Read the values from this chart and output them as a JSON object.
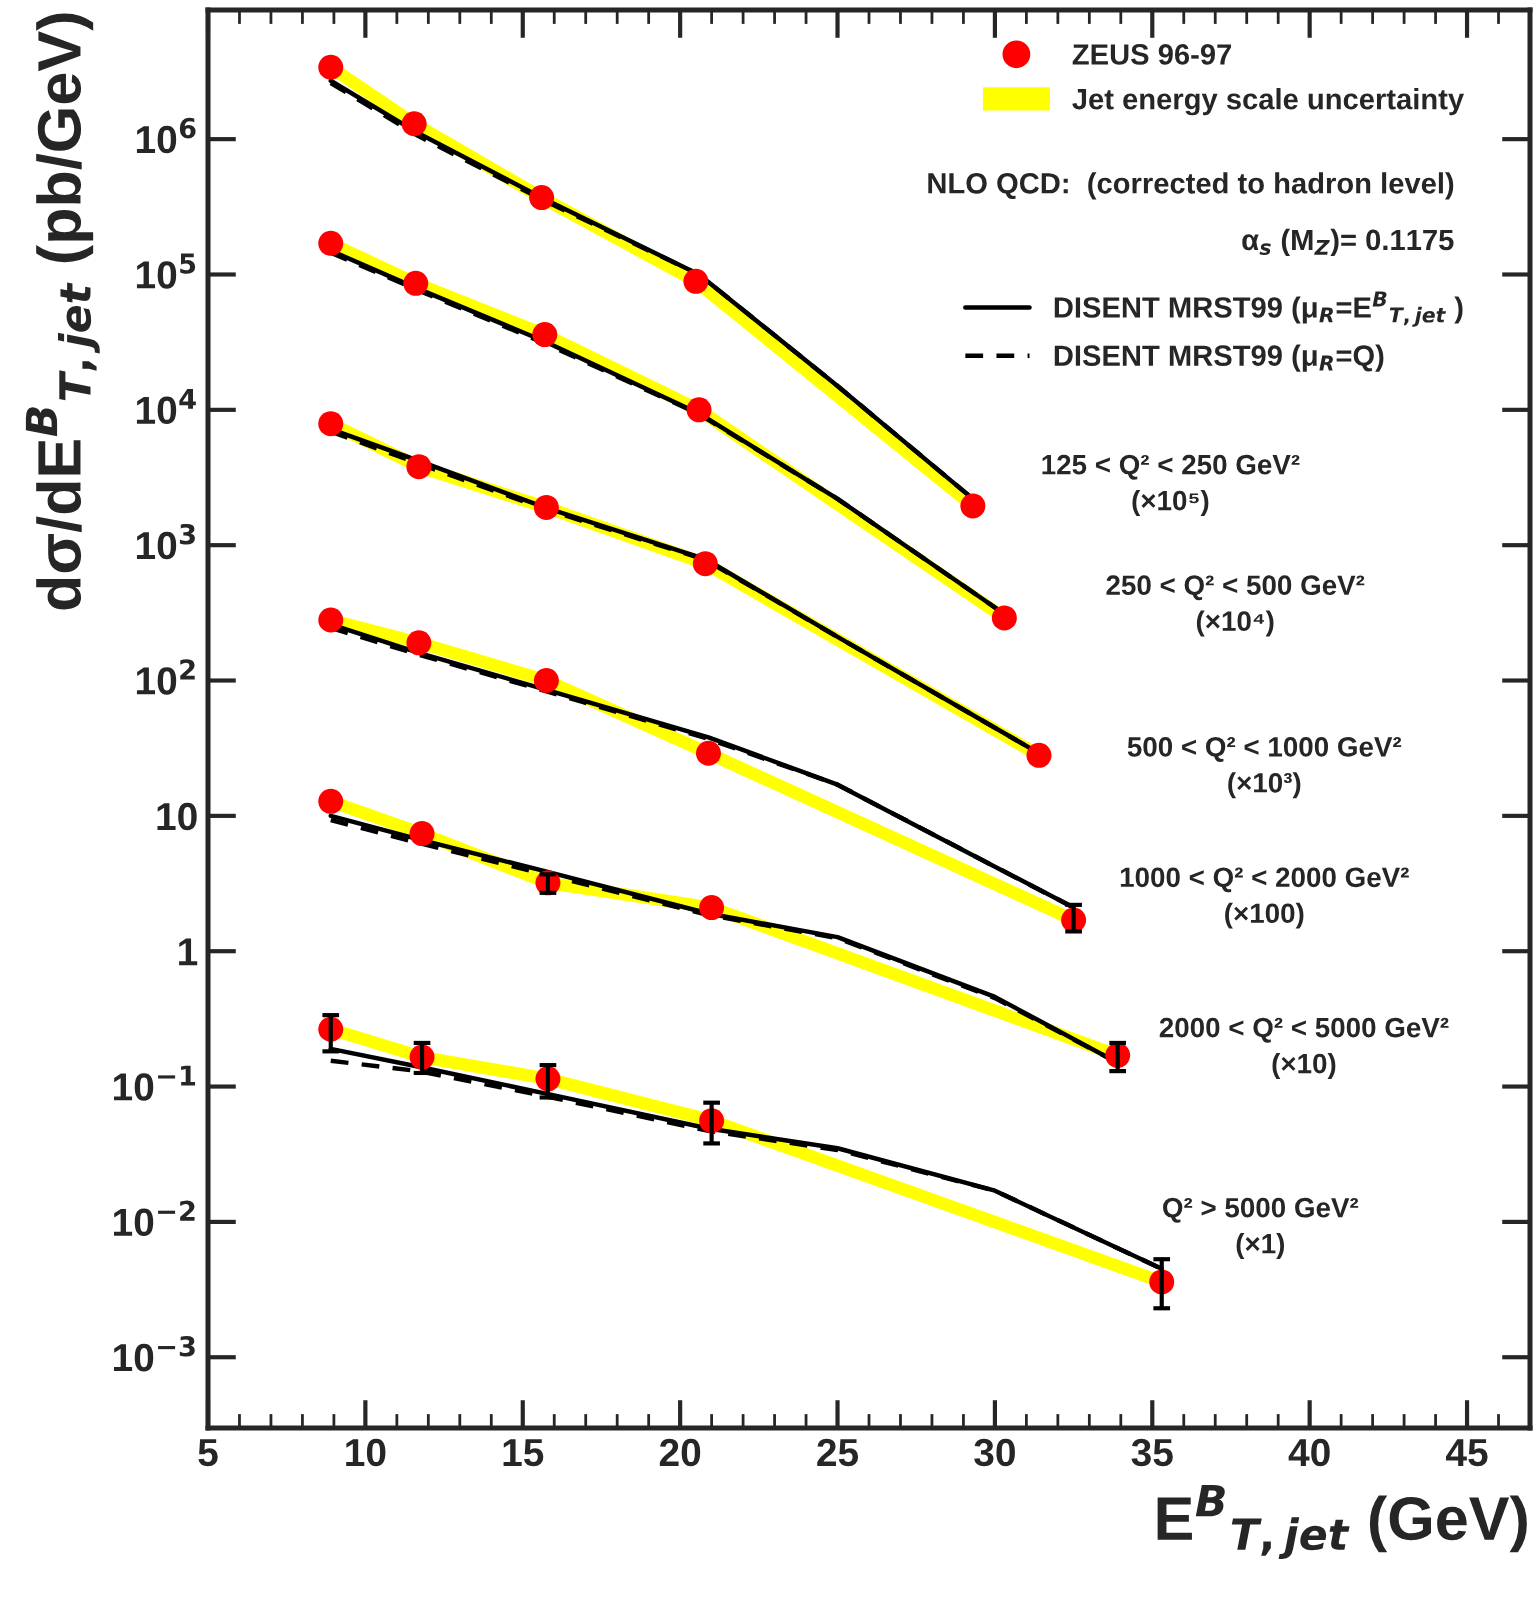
{
  "chart_data": {
    "type": "scatter",
    "xlabel": "E$^{B}$$_{T,jet}$ (GeV)",
    "ylabel": "dσ/dE$^{B}$$_{T,jet}$ (pb/GeV)",
    "log": "y",
    "xlim": [
      5,
      47
    ],
    "xticks": [
      5,
      10,
      15,
      20,
      25,
      30,
      35,
      40,
      45
    ],
    "ylim": [
      0.0003,
      9000000
    ],
    "yticks": [
      {
        "value": 0.001,
        "label": "10$^{−3}$"
      },
      {
        "value": 0.01,
        "label": "10$^{−2}$"
      },
      {
        "value": 0.1,
        "label": "10$^{−1}$"
      },
      {
        "value": 1,
        "label": "1"
      },
      {
        "value": 10,
        "label": "10"
      },
      {
        "value": 100,
        "label": "10$^{2}$"
      },
      {
        "value": 1000,
        "label": "10$^{3}$"
      },
      {
        "value": 10000,
        "label": "10$^{4}$"
      },
      {
        "value": 100000,
        "label": "10$^{5}$"
      },
      {
        "value": 1000000,
        "label": "10$^{6}$"
      }
    ],
    "grid": false,
    "legend": "top right",
    "series": [
      {
        "name": "Jet energy scale uncertainty",
        "type": "line",
        "color": "#ffff00",
        "line_style": "solid",
        "x": [
          8.9,
          11.55,
          15.6,
          20.5,
          29.3
        ],
        "values": [
          3400000,
          1300000,
          370000,
          89000,
          1950
        ]
      },
      {
        "type": "line",
        "color": "#ffff00",
        "line_style": "solid",
        "x": [
          8.9,
          11.6,
          15.7,
          20.6,
          30.3
        ],
        "values": [
          170000,
          86000,
          36000,
          10000,
          290
        ]
      },
      {
        "type": "line",
        "color": "#ffff00",
        "line_style": "solid",
        "x": [
          8.9,
          11.7,
          15.75,
          20.8,
          31.4
        ],
        "values": [
          7900,
          3800,
          1900,
          730,
          28
        ]
      },
      {
        "type": "line",
        "color": "#ffff00",
        "line_style": "solid",
        "x": [
          8.9,
          11.7,
          15.75,
          20.9,
          32.5
        ],
        "values": [
          280,
          190,
          100,
          29,
          1.7
        ]
      },
      {
        "type": "line",
        "color": "#ffff00",
        "line_style": "solid",
        "x": [
          8.9,
          11.8,
          15.8,
          21.0,
          33.9
        ],
        "values": [
          12.8,
          7.4,
          3.2,
          2.1,
          0.17
        ]
      },
      {
        "type": "line",
        "color": "#ffff00",
        "line_style": "solid",
        "x": [
          8.9,
          11.8,
          15.8,
          21.0,
          35.3
        ],
        "values": [
          0.265,
          0.165,
          0.114,
          0.056,
          0.0036
        ]
      },
      {
        "name": "DISENT MRST99 (μ$_{R}$=E$^{B}$$_{T,jet}$ )",
        "type": "line",
        "color": "#000000",
        "line_style": "solid",
        "x": [
          8.9,
          11.7,
          15.7,
          20.6,
          25,
          29.3
        ],
        "values": [
          2700000,
          1100000,
          360000,
          100000,
          15000,
          2200
        ]
      },
      {
        "type": "line",
        "color": "#000000",
        "line_style": "solid",
        "x": [
          8.9,
          11.7,
          15.7,
          20.6,
          25,
          30.3
        ],
        "values": [
          150000,
          78000,
          32000,
          9400,
          2200,
          310
        ]
      },
      {
        "type": "line",
        "color": "#000000",
        "line_style": "solid",
        "x": [
          8.9,
          11.7,
          15.7,
          20.8,
          25,
          31.4
        ],
        "values": [
          7200,
          4200,
          1900,
          790,
          210,
          29
        ]
      },
      {
        "type": "line",
        "color": "#000000",
        "line_style": "solid",
        "x": [
          8.9,
          11.7,
          15.7,
          20.9,
          25,
          32.5
        ],
        "values": [
          260,
          160,
          86,
          38,
          17,
          2.1
        ]
      },
      {
        "type": "line",
        "color": "#000000",
        "line_style": "solid",
        "x": [
          8.9,
          11.7,
          15.7,
          20.9,
          25,
          30,
          33.9
        ],
        "values": [
          10,
          6.7,
          3.9,
          1.9,
          1.27,
          0.46,
          0.15
        ]
      },
      {
        "type": "line",
        "color": "#000000",
        "line_style": "solid",
        "x": [
          8.9,
          11.7,
          15.7,
          20.9,
          25,
          30,
          35.3
        ],
        "values": [
          0.19,
          0.14,
          0.089,
          0.049,
          0.035,
          0.017,
          0.0045
        ]
      },
      {
        "name": "DISENT MRST99 (μ$_{R}$=Q)",
        "type": "line",
        "color": "#000000",
        "line_style": "dashed",
        "x": [
          8.9,
          11.7,
          15.7,
          20.6,
          25,
          29.3
        ],
        "values": [
          2600000,
          1050000,
          350000,
          100000,
          15000,
          2200
        ]
      },
      {
        "type": "line",
        "color": "#000000",
        "line_style": "dashed",
        "x": [
          8.9,
          11.7,
          15.7,
          20.6,
          25,
          30.3
        ],
        "values": [
          145000,
          76000,
          31000,
          9300,
          2200,
          310
        ]
      },
      {
        "type": "line",
        "color": "#000000",
        "line_style": "dashed",
        "x": [
          8.9,
          11.7,
          15.7,
          20.8,
          25,
          31.4
        ],
        "values": [
          6900,
          4000,
          1850,
          780,
          210,
          29
        ]
      },
      {
        "type": "line",
        "color": "#000000",
        "line_style": "dashed",
        "x": [
          8.9,
          11.7,
          15.7,
          20.9,
          25,
          32.5
        ],
        "values": [
          245,
          155,
          84,
          37,
          17,
          2.1
        ]
      },
      {
        "type": "line",
        "color": "#000000",
        "line_style": "dashed",
        "x": [
          8.9,
          11.7,
          15.7,
          20.9,
          25,
          30,
          33.9
        ],
        "values": [
          9.3,
          6.3,
          3.7,
          1.85,
          1.25,
          0.45,
          0.15
        ]
      },
      {
        "type": "line",
        "color": "#000000",
        "line_style": "dashed",
        "x": [
          8.9,
          11.7,
          15.7,
          20.9,
          25,
          30,
          35.3
        ],
        "values": [
          0.155,
          0.13,
          0.085,
          0.047,
          0.034,
          0.017,
          0.0045
        ]
      },
      {
        "name": "ZEUS 96-97",
        "color": "#ff0000",
        "marker": "circle",
        "x": [
          8.9,
          11.55,
          15.6,
          20.5,
          29.3
        ],
        "values": [
          3400000,
          1300000,
          370000,
          89000,
          1950
        ]
      },
      {
        "color": "#ff0000",
        "marker": "circle",
        "x": [
          8.9,
          11.6,
          15.7,
          20.6,
          30.3
        ],
        "values": [
          170000,
          86000,
          36000,
          10000,
          290
        ]
      },
      {
        "color": "#ff0000",
        "marker": "circle",
        "x": [
          8.9,
          11.7,
          15.75,
          20.8,
          31.4
        ],
        "values": [
          7900,
          3800,
          1900,
          730,
          28
        ]
      },
      {
        "color": "#ff0000",
        "marker": "circle",
        "x": [
          8.9,
          11.7,
          15.75,
          20.9,
          32.5
        ],
        "values": [
          280,
          190,
          100,
          29,
          1.7
        ],
        "errors": [
          null,
          null,
          null,
          null,
          [
            1.4,
            2.2
          ]
        ]
      },
      {
        "color": "#ff0000",
        "marker": "circle",
        "x": [
          8.9,
          11.8,
          15.8,
          21.0,
          33.9
        ],
        "values": [
          12.8,
          7.4,
          3.2,
          2.1,
          0.17
        ],
        "errors": [
          null,
          null,
          [
            2.7,
            3.7
          ],
          null,
          [
            0.13,
            0.21
          ]
        ]
      },
      {
        "color": "#ff0000",
        "marker": "circle",
        "x": [
          8.9,
          11.8,
          15.8,
          21.0,
          35.3
        ],
        "values": [
          0.265,
          0.165,
          0.114,
          0.056,
          0.0036
        ],
        "errors": [
          [
            0.182,
            0.337
          ],
          [
            0.126,
            0.21
          ],
          [
            0.083,
            0.144
          ],
          [
            0.038,
            0.076
          ],
          [
            0.0023,
            0.0053
          ]
        ]
      }
    ],
    "annotations": [
      "NLO QCD:  (corrected to hadron level)",
      "α$_{s}$ (M$_{Z}$)= 0.1175",
      "125 < Q² < 250 GeV²\n(×10⁵)",
      "250 < Q² < 500 GeV²\n(×10⁴)",
      "500 < Q² < 1000 GeV²\n(×10³)",
      "1000 < Q² < 2000 GeV²\n(×100)",
      "2000 < Q² < 5000 GeV²\n(×10)",
      "Q² > 5000 GeV²\n(×1)"
    ]
  }
}
